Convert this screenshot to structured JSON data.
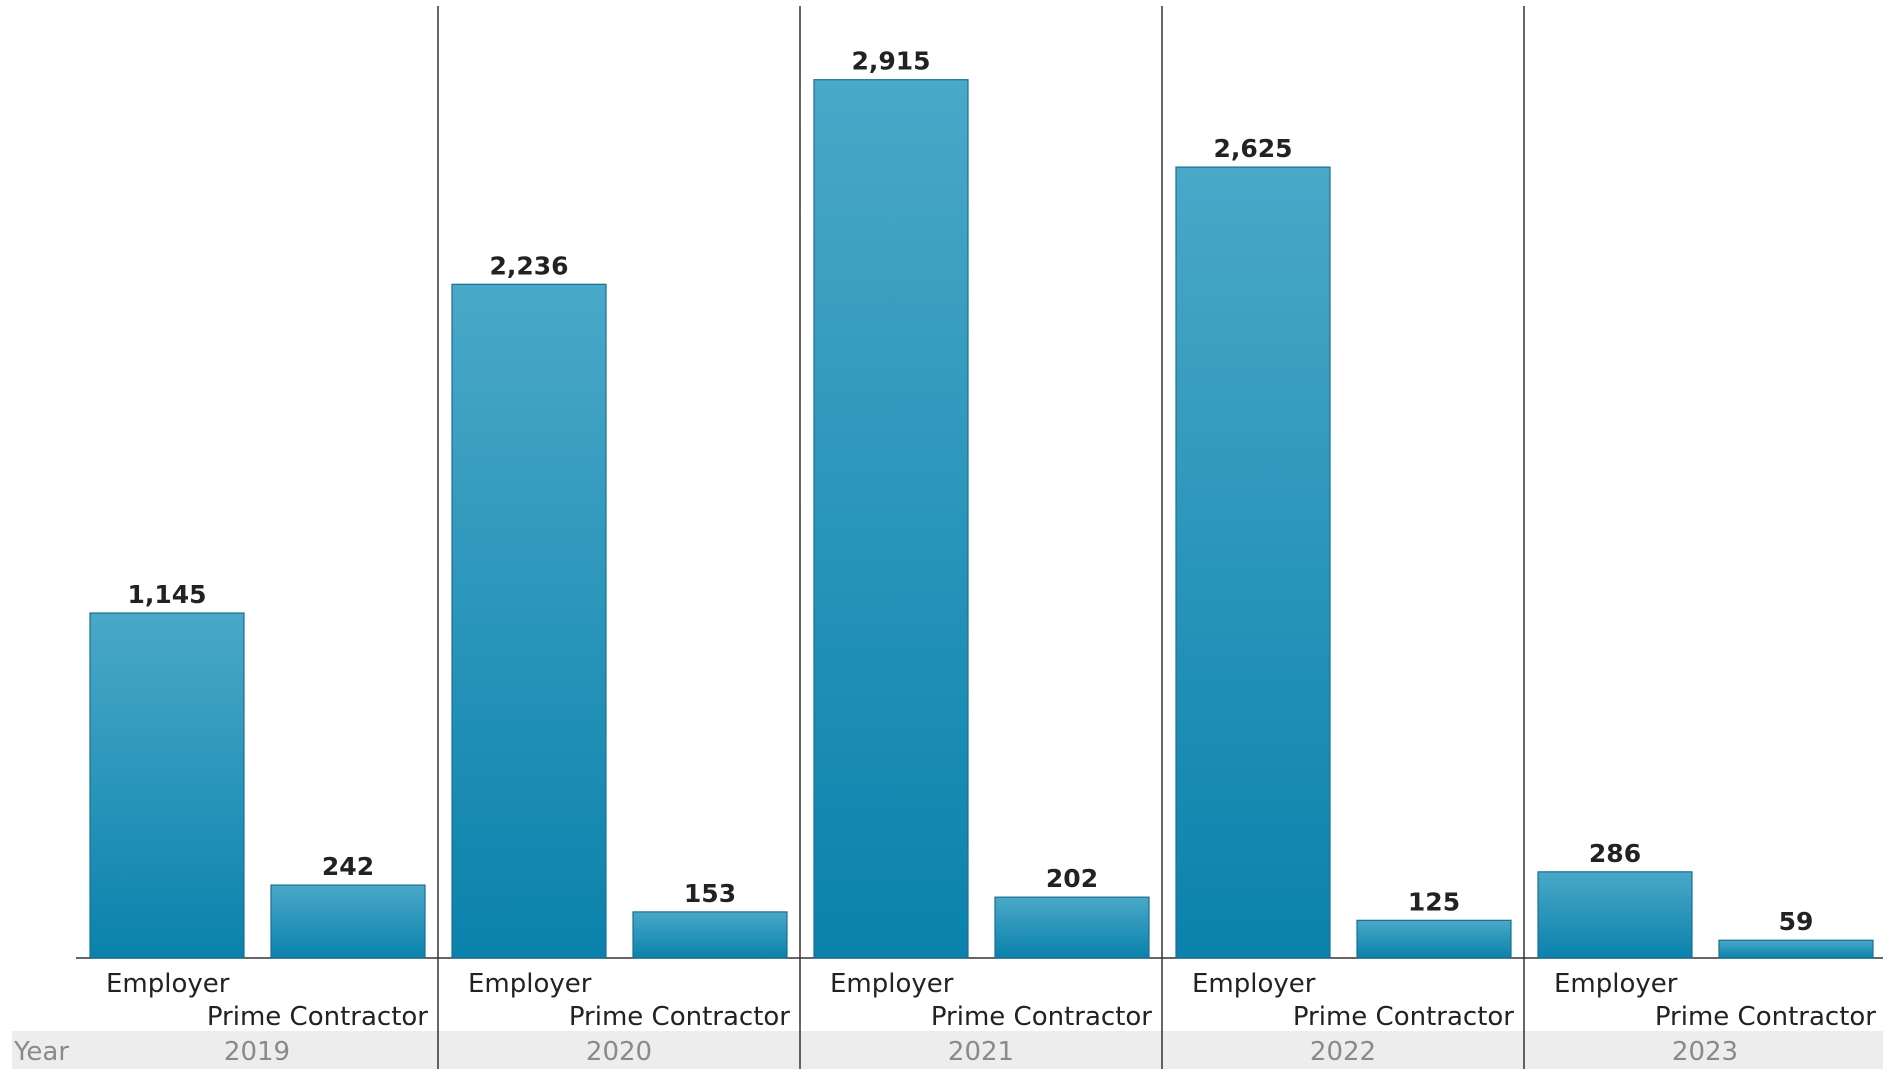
{
  "chart_data": {
    "type": "bar",
    "row_header": "Year",
    "categories": [
      "2019",
      "2020",
      "2021",
      "2022",
      "2023"
    ],
    "series": [
      {
        "name": "Employer",
        "values": [
          1145,
          2236,
          2915,
          2625,
          286
        ]
      },
      {
        "name": "Prime Contractor",
        "values": [
          242,
          153,
          202,
          125,
          59
        ]
      }
    ],
    "value_labels": [
      [
        "1,145",
        "2,236",
        "2,915",
        "2,625",
        "286"
      ],
      [
        "242",
        "153",
        "202",
        "125",
        "59"
      ]
    ],
    "ylim": [
      0,
      3100
    ],
    "grid": false,
    "legend": "none",
    "colors": {
      "bar_top": "#4aa8c8",
      "bar_bottom": "#0a82ac",
      "bar_stroke": "#1a6f92",
      "year_band": "#ededed",
      "divider": "#333333"
    }
  }
}
